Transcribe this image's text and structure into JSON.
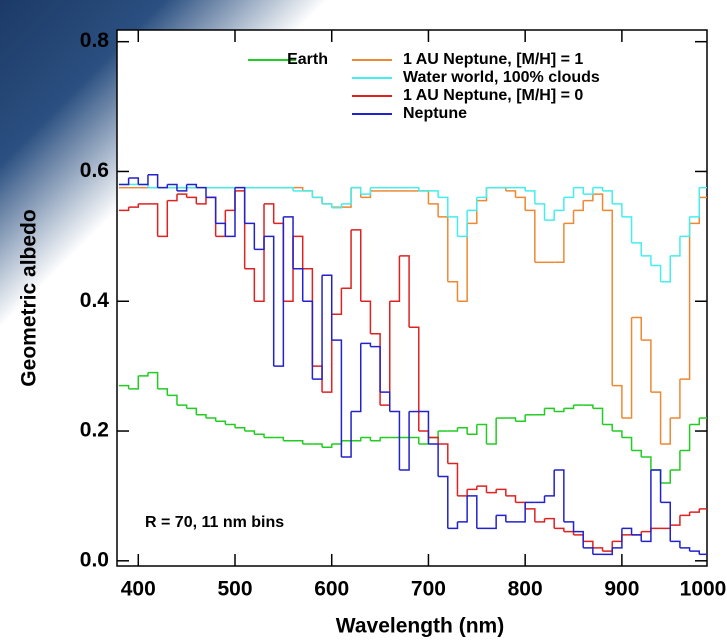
{
  "chart_data": {
    "type": "line",
    "step": true,
    "x_label": "Wavelength (nm)",
    "y_label": "Geometric albedo",
    "annotation": "R = 70, 11 nm bins",
    "legend": "top",
    "xlim": [
      378,
      988
    ],
    "xticks": [
      400,
      500,
      600,
      700,
      800,
      900,
      1000
    ],
    "ylim": [
      -0.008,
      0.818
    ],
    "yticks": [
      {
        "value": 0,
        "label": "0.0"
      },
      0.2,
      0.4,
      0.6,
      0.8
    ],
    "x": [
      380,
      390,
      400,
      410,
      420,
      430,
      440,
      450,
      460,
      470,
      480,
      490,
      500,
      510,
      520,
      530,
      540,
      550,
      560,
      570,
      580,
      590,
      600,
      610,
      620,
      630,
      640,
      650,
      660,
      670,
      680,
      690,
      700,
      710,
      720,
      730,
      740,
      750,
      760,
      770,
      780,
      790,
      800,
      810,
      820,
      830,
      840,
      850,
      860,
      870,
      880,
      890,
      900,
      910,
      920,
      930,
      940,
      950,
      960,
      970,
      980
    ],
    "series": [
      {
        "name": "Earth",
        "color": "#22cc22",
        "values": [
          0.27,
          0.265,
          0.285,
          0.29,
          0.265,
          0.255,
          0.24,
          0.235,
          0.225,
          0.22,
          0.215,
          0.21,
          0.205,
          0.2,
          0.195,
          0.19,
          0.19,
          0.185,
          0.185,
          0.18,
          0.18,
          0.175,
          0.18,
          0.185,
          0.185,
          0.19,
          0.185,
          0.19,
          0.19,
          0.19,
          0.19,
          0.18,
          0.19,
          0.2,
          0.2,
          0.205,
          0.195,
          0.21,
          0.18,
          0.22,
          0.22,
          0.215,
          0.225,
          0.225,
          0.235,
          0.23,
          0.235,
          0.24,
          0.24,
          0.235,
          0.21,
          0.2,
          0.19,
          0.17,
          0.16,
          0.14,
          0.12,
          0.14,
          0.17,
          0.21,
          0.22
        ]
      },
      {
        "name": "1 AU Neptune, [M/H] = 1",
        "color": "#ee8833",
        "values": [
          0.575,
          0.575,
          0.575,
          0.575,
          0.575,
          0.575,
          0.575,
          0.575,
          0.575,
          0.575,
          0.575,
          0.575,
          0.575,
          0.575,
          0.575,
          0.575,
          0.575,
          0.575,
          0.575,
          0.57,
          0.56,
          0.55,
          0.545,
          0.545,
          0.575,
          0.56,
          0.57,
          0.57,
          0.57,
          0.57,
          0.57,
          0.57,
          0.55,
          0.53,
          0.43,
          0.4,
          0.52,
          0.555,
          0.575,
          0.575,
          0.57,
          0.56,
          0.54,
          0.46,
          0.46,
          0.46,
          0.52,
          0.54,
          0.555,
          0.565,
          0.54,
          0.27,
          0.22,
          0.375,
          0.34,
          0.26,
          0.18,
          0.22,
          0.28,
          0.52,
          0.56
        ]
      },
      {
        "name": "Water world, 100% clouds",
        "color": "#44eeee",
        "values": [
          0.58,
          0.58,
          0.58,
          0.575,
          0.575,
          0.575,
          0.575,
          0.575,
          0.575,
          0.575,
          0.575,
          0.575,
          0.575,
          0.575,
          0.575,
          0.575,
          0.575,
          0.575,
          0.57,
          0.57,
          0.56,
          0.55,
          0.544,
          0.55,
          0.575,
          0.565,
          0.575,
          0.575,
          0.575,
          0.575,
          0.575,
          0.57,
          0.57,
          0.56,
          0.53,
          0.5,
          0.54,
          0.56,
          0.575,
          0.575,
          0.575,
          0.575,
          0.57,
          0.55,
          0.525,
          0.54,
          0.56,
          0.575,
          0.565,
          0.575,
          0.57,
          0.55,
          0.53,
          0.49,
          0.47,
          0.455,
          0.43,
          0.47,
          0.5,
          0.53,
          0.575
        ]
      },
      {
        "name": "1 AU Neptune, [M/H] = 0",
        "color": "#dd2222",
        "values": [
          0.54,
          0.545,
          0.55,
          0.55,
          0.5,
          0.555,
          0.565,
          0.56,
          0.55,
          0.56,
          0.5,
          0.54,
          0.57,
          0.45,
          0.4,
          0.55,
          0.52,
          0.4,
          0.5,
          0.45,
          0.3,
          0.26,
          0.38,
          0.42,
          0.51,
          0.4,
          0.35,
          0.24,
          0.4,
          0.47,
          0.36,
          0.2,
          0.19,
          0.18,
          0.15,
          0.1,
          0.11,
          0.115,
          0.105,
          0.11,
          0.1,
          0.09,
          0.08,
          0.06,
          0.065,
          0.05,
          0.045,
          0.04,
          0.03,
          0.02,
          0.015,
          0.03,
          0.04,
          0.04,
          0.045,
          0.05,
          0.05,
          0.055,
          0.07,
          0.075,
          0.08
        ]
      },
      {
        "name": "Neptune",
        "color": "#2222cc",
        "values": [
          0.58,
          0.59,
          0.58,
          0.595,
          0.575,
          0.58,
          0.57,
          0.58,
          0.575,
          0.56,
          0.52,
          0.5,
          0.575,
          0.52,
          0.48,
          0.5,
          0.3,
          0.53,
          0.45,
          0.4,
          0.28,
          0.44,
          0.34,
          0.16,
          0.23,
          0.335,
          0.33,
          0.26,
          0.23,
          0.14,
          0.23,
          0.23,
          0.18,
          0.13,
          0.05,
          0.06,
          0.1,
          0.05,
          0.05,
          0.07,
          0.06,
          0.06,
          0.09,
          0.09,
          0.1,
          0.14,
          0.06,
          0.045,
          0.02,
          0.01,
          0.01,
          0.02,
          0.05,
          0.04,
          0.03,
          0.14,
          0.09,
          0.03,
          0.02,
          0.015,
          0.01
        ]
      }
    ]
  }
}
